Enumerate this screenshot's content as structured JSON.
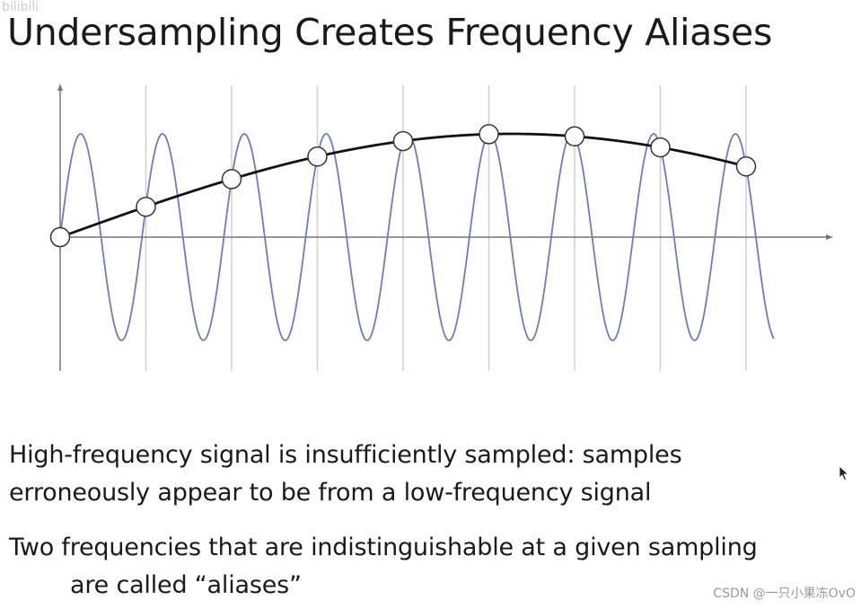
{
  "slide": {
    "title": "Undersampling Creates Frequency Aliases",
    "corner_logo": "bilibili",
    "paragraphs": [
      {
        "lines": [
          "High-frequency signal is insufficiently sampled: samples",
          "erroneously appear to be from a low-frequency signal"
        ]
      },
      {
        "lines": [
          "Two frequencies that are indistinguishable at a given sampling",
          "are called “aliases”"
        ]
      }
    ],
    "watermark": "CSDN @一只小果冻OvO"
  },
  "figure": {
    "sample_count": 9,
    "high_frequency_cycles": 8.38,
    "colors": {
      "high_frequency_signal": "#6a7fb5",
      "alias_signal": "#111111",
      "axis": "#777777",
      "gridline": "#cfcfcf",
      "sample_marker_fill": "#ffffff",
      "sample_marker_stroke": "#333333"
    },
    "icons": {
      "cursor": "mouse-pointer-icon"
    }
  }
}
